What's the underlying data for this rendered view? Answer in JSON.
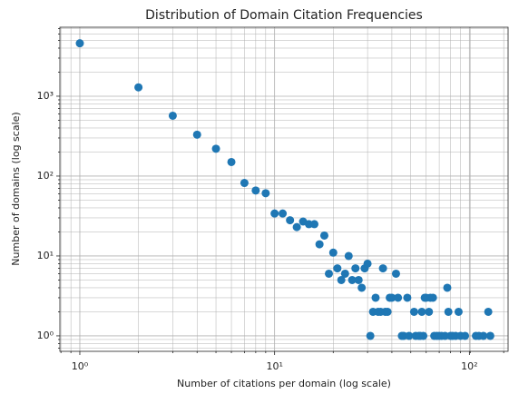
{
  "chart_data": {
    "type": "scatter",
    "title": "Distribution of Domain Citation Frequencies",
    "xlabel": "Number of citations per domain (log scale)",
    "ylabel": "Number of domains (log scale)",
    "x": [
      1,
      2,
      3,
      4,
      5,
      6,
      7,
      8,
      9,
      10,
      11,
      12,
      13,
      14,
      15,
      16,
      17,
      18,
      19,
      20,
      21,
      22,
      23,
      24,
      25,
      26,
      27,
      28,
      29,
      30,
      31,
      32,
      33,
      34,
      35,
      36,
      37,
      38,
      39,
      40,
      42,
      43,
      45,
      46,
      48,
      49,
      52,
      53,
      55,
      56,
      57,
      58,
      59,
      60,
      62,
      63,
      65,
      66,
      68,
      70,
      72,
      75,
      77,
      78,
      80,
      82,
      85,
      88,
      90,
      95,
      108,
      112,
      118,
      125,
      128
    ],
    "values": [
      4600,
      1290,
      570,
      330,
      220,
      150,
      82,
      66,
      61,
      34,
      34,
      28,
      23,
      27,
      25,
      25,
      14,
      18,
      6,
      11,
      7,
      5,
      6,
      10,
      5,
      7,
      5,
      4,
      7,
      8,
      1,
      2,
      3,
      2,
      2,
      7,
      2,
      2,
      3,
      3,
      6,
      3,
      1,
      1,
      3,
      1,
      2,
      1,
      1,
      1,
      2,
      1,
      3,
      3,
      2,
      3,
      3,
      1,
      1,
      1,
      1,
      1,
      4,
      2,
      1,
      1,
      1,
      2,
      1,
      1,
      1,
      1,
      1,
      2,
      1
    ],
    "color": "#1f77b4",
    "xscale": "log",
    "yscale": "log",
    "xlim": [
      0.79,
      158
    ],
    "ylim": [
      0.64,
      7300
    ],
    "xticks": [
      {
        "value": 1,
        "label": "10⁰"
      },
      {
        "value": 10,
        "label": "10¹"
      },
      {
        "value": 100,
        "label": "10²"
      }
    ],
    "yticks": [
      {
        "value": 1,
        "label": "10⁰"
      },
      {
        "value": 10,
        "label": "10¹"
      },
      {
        "value": 100,
        "label": "10²"
      },
      {
        "value": 1000,
        "label": "10³"
      }
    ],
    "xminorticks": [
      0.8,
      0.9,
      2,
      3,
      4,
      5,
      6,
      7,
      8,
      9,
      20,
      30,
      40,
      50,
      60,
      70,
      80,
      90,
      101,
      150
    ],
    "yminorticks": [
      0.7,
      0.8,
      0.9,
      2,
      3,
      4,
      5,
      6,
      7,
      8,
      9,
      20,
      30,
      40,
      50,
      60,
      70,
      80,
      90,
      200,
      300,
      400,
      500,
      600,
      700,
      800,
      900,
      2000,
      3000,
      4000,
      5000,
      6000,
      7000
    ],
    "grid": true,
    "minor_grid": true
  }
}
